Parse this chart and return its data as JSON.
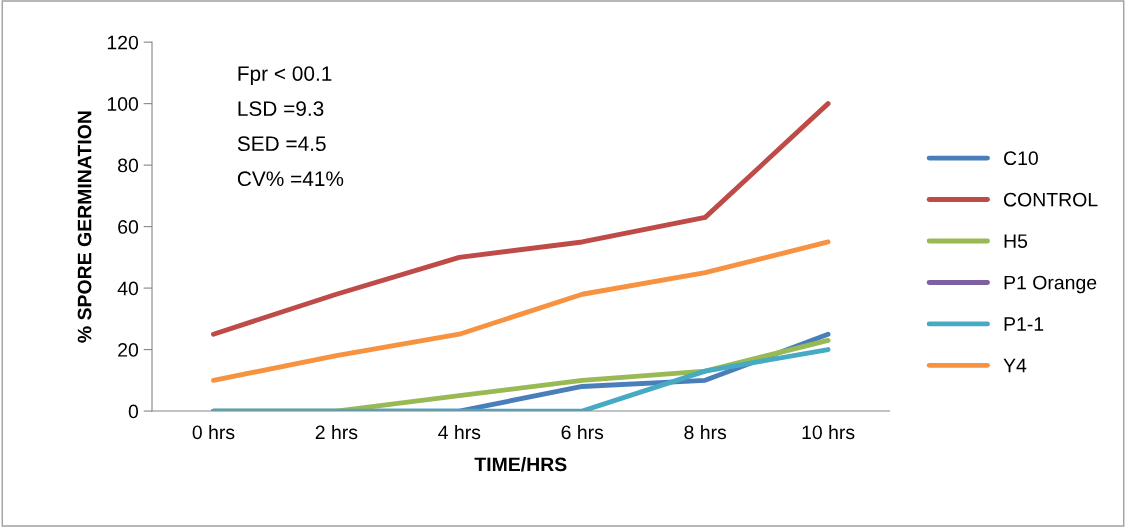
{
  "chart_data": {
    "type": "line",
    "xlabel": "TIME/HRS",
    "ylabel": "% SPORE GERMINATION",
    "categories": [
      "0 hrs",
      "2 hrs",
      "4 hrs",
      "6 hrs",
      "8 hrs",
      "10 hrs"
    ],
    "series": [
      {
        "name": "C10",
        "color": "#4a7ebb",
        "values": [
          0,
          0,
          0,
          8,
          10,
          25
        ]
      },
      {
        "name": "CONTROL",
        "color": "#be4b48",
        "values": [
          25,
          38,
          50,
          55,
          63,
          100
        ]
      },
      {
        "name": "H5",
        "color": "#98b954",
        "values": [
          0,
          0,
          5,
          10,
          13,
          23
        ]
      },
      {
        "name": "P1 Orange",
        "color": "#7d60a0",
        "values": [
          null,
          null,
          null,
          null,
          null,
          null
        ]
      },
      {
        "name": "P1-1",
        "color": "#46aac5",
        "values": [
          0,
          0,
          0,
          0,
          13,
          20
        ]
      },
      {
        "name": "Y4",
        "color": "#f69240",
        "values": [
          10,
          18,
          25,
          38,
          45,
          55
        ]
      }
    ],
    "ylim": [
      0,
      120
    ],
    "yticks": [
      0,
      20,
      40,
      60,
      80,
      100,
      120
    ],
    "grid": false,
    "legend": "right",
    "marker": "none",
    "line_style": "solid",
    "annotations": [
      "Fpr < 00.1",
      "LSD =9.3",
      "SED =4.5",
      "CV% =41%"
    ]
  }
}
